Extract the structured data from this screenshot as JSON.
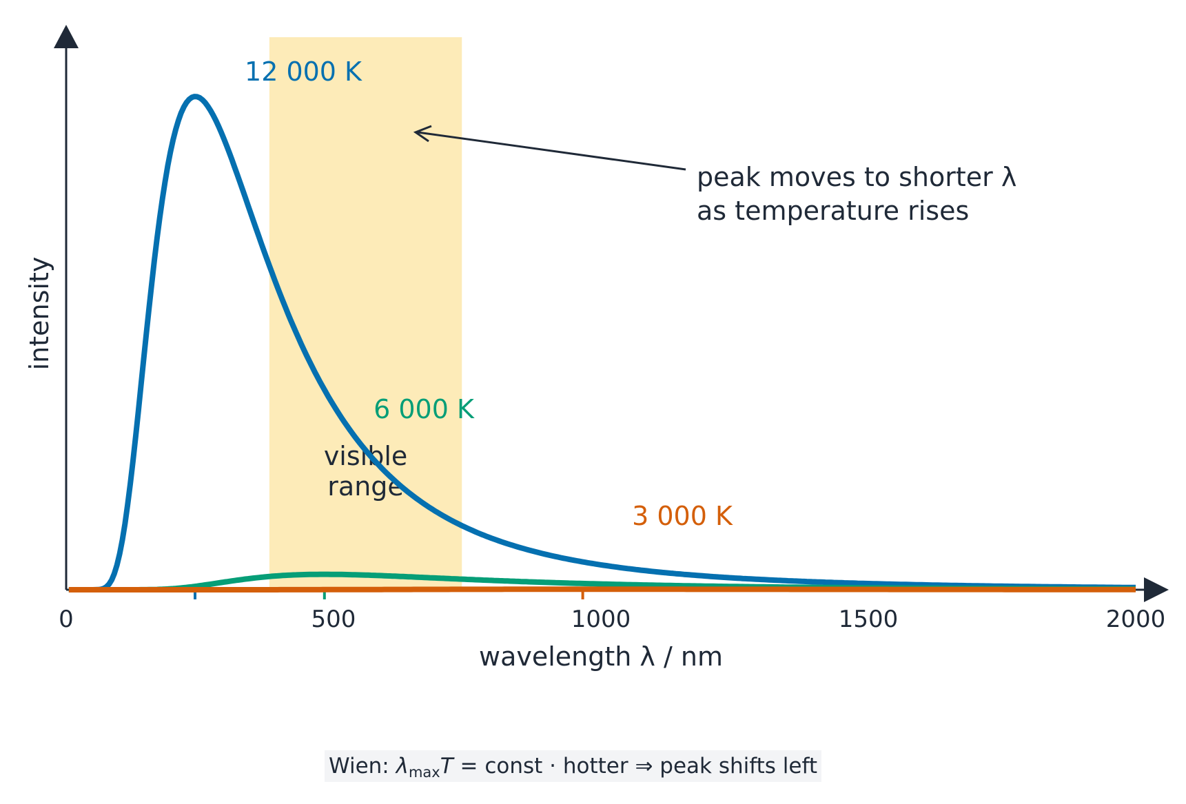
{
  "chart_data": {
    "type": "line",
    "xlabel": "wavelength λ / nm",
    "ylabel": "intensity",
    "xlim": [
      0,
      2000
    ],
    "x_ticks": [
      "0",
      "500",
      "1000",
      "1500",
      "2000"
    ],
    "grid": false,
    "visible_band": {
      "from": 380,
      "to": 740,
      "label_line1": "visible",
      "label_line2": "range",
      "color": "#fdebb8"
    },
    "series": [
      {
        "name": "12 000 K",
        "temperature": 12000,
        "color": "#0570b0",
        "peak_wavelength": 241
      },
      {
        "name": "6 000 K",
        "temperature": 6000,
        "color": "#069e77",
        "peak_wavelength": 483
      },
      {
        "name": "3 000 K",
        "temperature": 3000,
        "color": "#d45f0a",
        "peak_wavelength": 966
      }
    ],
    "annotation": {
      "line1": "peak moves to shorter λ",
      "line2": "as temperature rises"
    }
  },
  "footer": {
    "prefix": "Wien: ",
    "lambda": "λ",
    "sub": "max",
    "T": "T",
    "rest": " =  const  ·  hotter  ⇒  peak shifts left"
  },
  "colors": {
    "axis": "#1f2937",
    "text": "#1f2937"
  }
}
